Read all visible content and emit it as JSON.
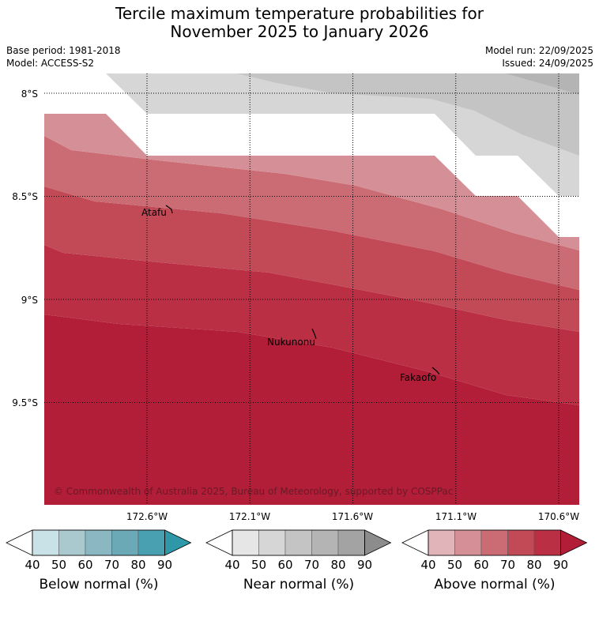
{
  "title": {
    "line1": "Tercile maximum temperature probabilities for",
    "line2": "November 2025 to January 2026"
  },
  "info": {
    "base_period": "Base period: 1981-2018",
    "model": "Model: ACCESS-S2",
    "model_run": "Model run: 22/09/2025",
    "issued": "Issued: 24/09/2025"
  },
  "map": {
    "lat_labels": [
      "8°S",
      "8.5°S",
      "9°S",
      "9.5°S"
    ],
    "lat_values": [
      -8.0,
      -8.5,
      -9.0,
      -9.5
    ],
    "lon_labels": [
      "172.6°W",
      "172.1°W",
      "171.6°W",
      "171.1°W",
      "170.6°W"
    ],
    "lon_values": [
      -172.6,
      -172.1,
      -171.6,
      -171.1,
      -170.6
    ],
    "places": [
      {
        "name": "Atafu",
        "lon": -172.5,
        "lat": -8.55
      },
      {
        "name": "Nukunonu",
        "lon": -171.85,
        "lat": -9.2
      },
      {
        "name": "Fakaofo",
        "lon": -171.2,
        "lat": -9.38
      }
    ],
    "copyright": "© Commonwealth of Australia 2025, Bureau of Meteorology, supported by COSPPac",
    "colors": {
      "above_40": "#e0b4b9",
      "above_50": "#d59097",
      "above_60": "#cb6b74",
      "above_70": "#c24a56",
      "above_80": "#bb2f45",
      "above_90": "#b21d38",
      "near_40": "#e6e6e6",
      "near_50": "#d6d6d6",
      "near_60": "#c4c4c4",
      "near_70": "#b4b4b4",
      "near_80": "#a3a3a3"
    }
  },
  "colorbars": [
    {
      "label": "Below normal (%)",
      "ticks": [
        "40",
        "50",
        "60",
        "70",
        "80",
        "90"
      ],
      "colors": [
        "#c9e2e8",
        "#a9c9cf",
        "#8ab7c1",
        "#6ba9b6",
        "#48a0b1",
        "#2e97a8"
      ]
    },
    {
      "label": "Near normal (%)",
      "ticks": [
        "40",
        "50",
        "60",
        "70",
        "80",
        "90"
      ],
      "colors": [
        "#e6e6e6",
        "#d6d6d6",
        "#c4c4c4",
        "#b4b4b4",
        "#a3a3a3",
        "#8c8c8c"
      ]
    },
    {
      "label": "Above normal (%)",
      "ticks": [
        "40",
        "50",
        "60",
        "70",
        "80",
        "90"
      ],
      "colors": [
        "#e0b4b9",
        "#d59097",
        "#cb6b74",
        "#c24a56",
        "#bb2f45",
        "#b21d38"
      ]
    }
  ]
}
